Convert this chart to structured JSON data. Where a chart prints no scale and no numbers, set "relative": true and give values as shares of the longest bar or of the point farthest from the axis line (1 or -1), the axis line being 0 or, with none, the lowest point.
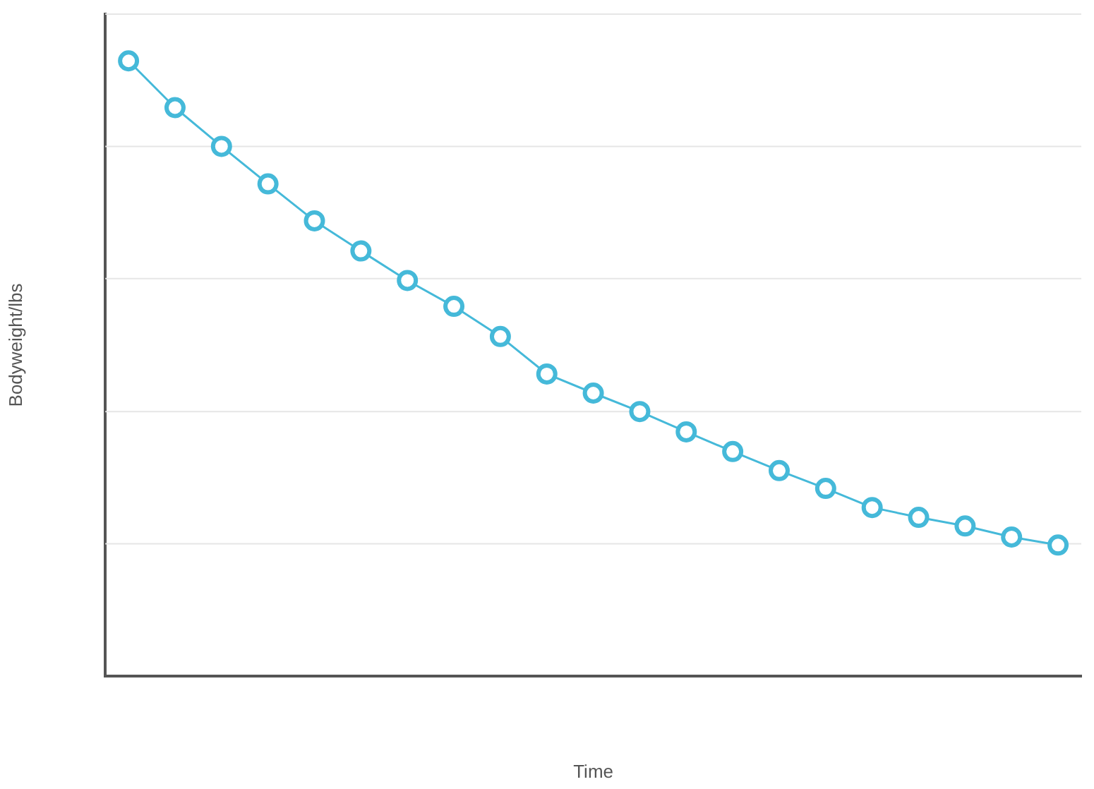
{
  "chart_data": {
    "type": "line",
    "xlabel": "Time",
    "ylabel": "Bodyweight/lbs",
    "relative": true,
    "ref_lines": [
      {
        "axis": "y",
        "value": 0.215,
        "color": "#e6e6e6"
      },
      {
        "axis": "y",
        "value": 0.43,
        "color": "#e6e6e6"
      },
      {
        "axis": "y",
        "value": 0.646,
        "color": "#e6e6e6"
      },
      {
        "axis": "y",
        "value": 0.861,
        "color": "#e6e6e6"
      },
      {
        "axis": "y",
        "value": 1.076,
        "color": "#e6e6e6"
      }
    ],
    "marker": "circle",
    "line_style": "solid",
    "categories": [
      null,
      null,
      null,
      null,
      null,
      null,
      null,
      null,
      null,
      null,
      null,
      null,
      null,
      null,
      null,
      null,
      null,
      null,
      null,
      null,
      null
    ],
    "series": [
      {
        "color": "#45b9d9",
        "values": [
          1,
          0.924,
          0.861,
          0.8,
          0.74,
          0.691,
          0.643,
          0.601,
          0.552,
          0.491,
          0.46,
          0.43,
          0.397,
          0.365,
          0.334,
          0.305,
          0.274,
          0.258,
          0.244,
          0.226,
          0.213
        ]
      }
    ]
  }
}
